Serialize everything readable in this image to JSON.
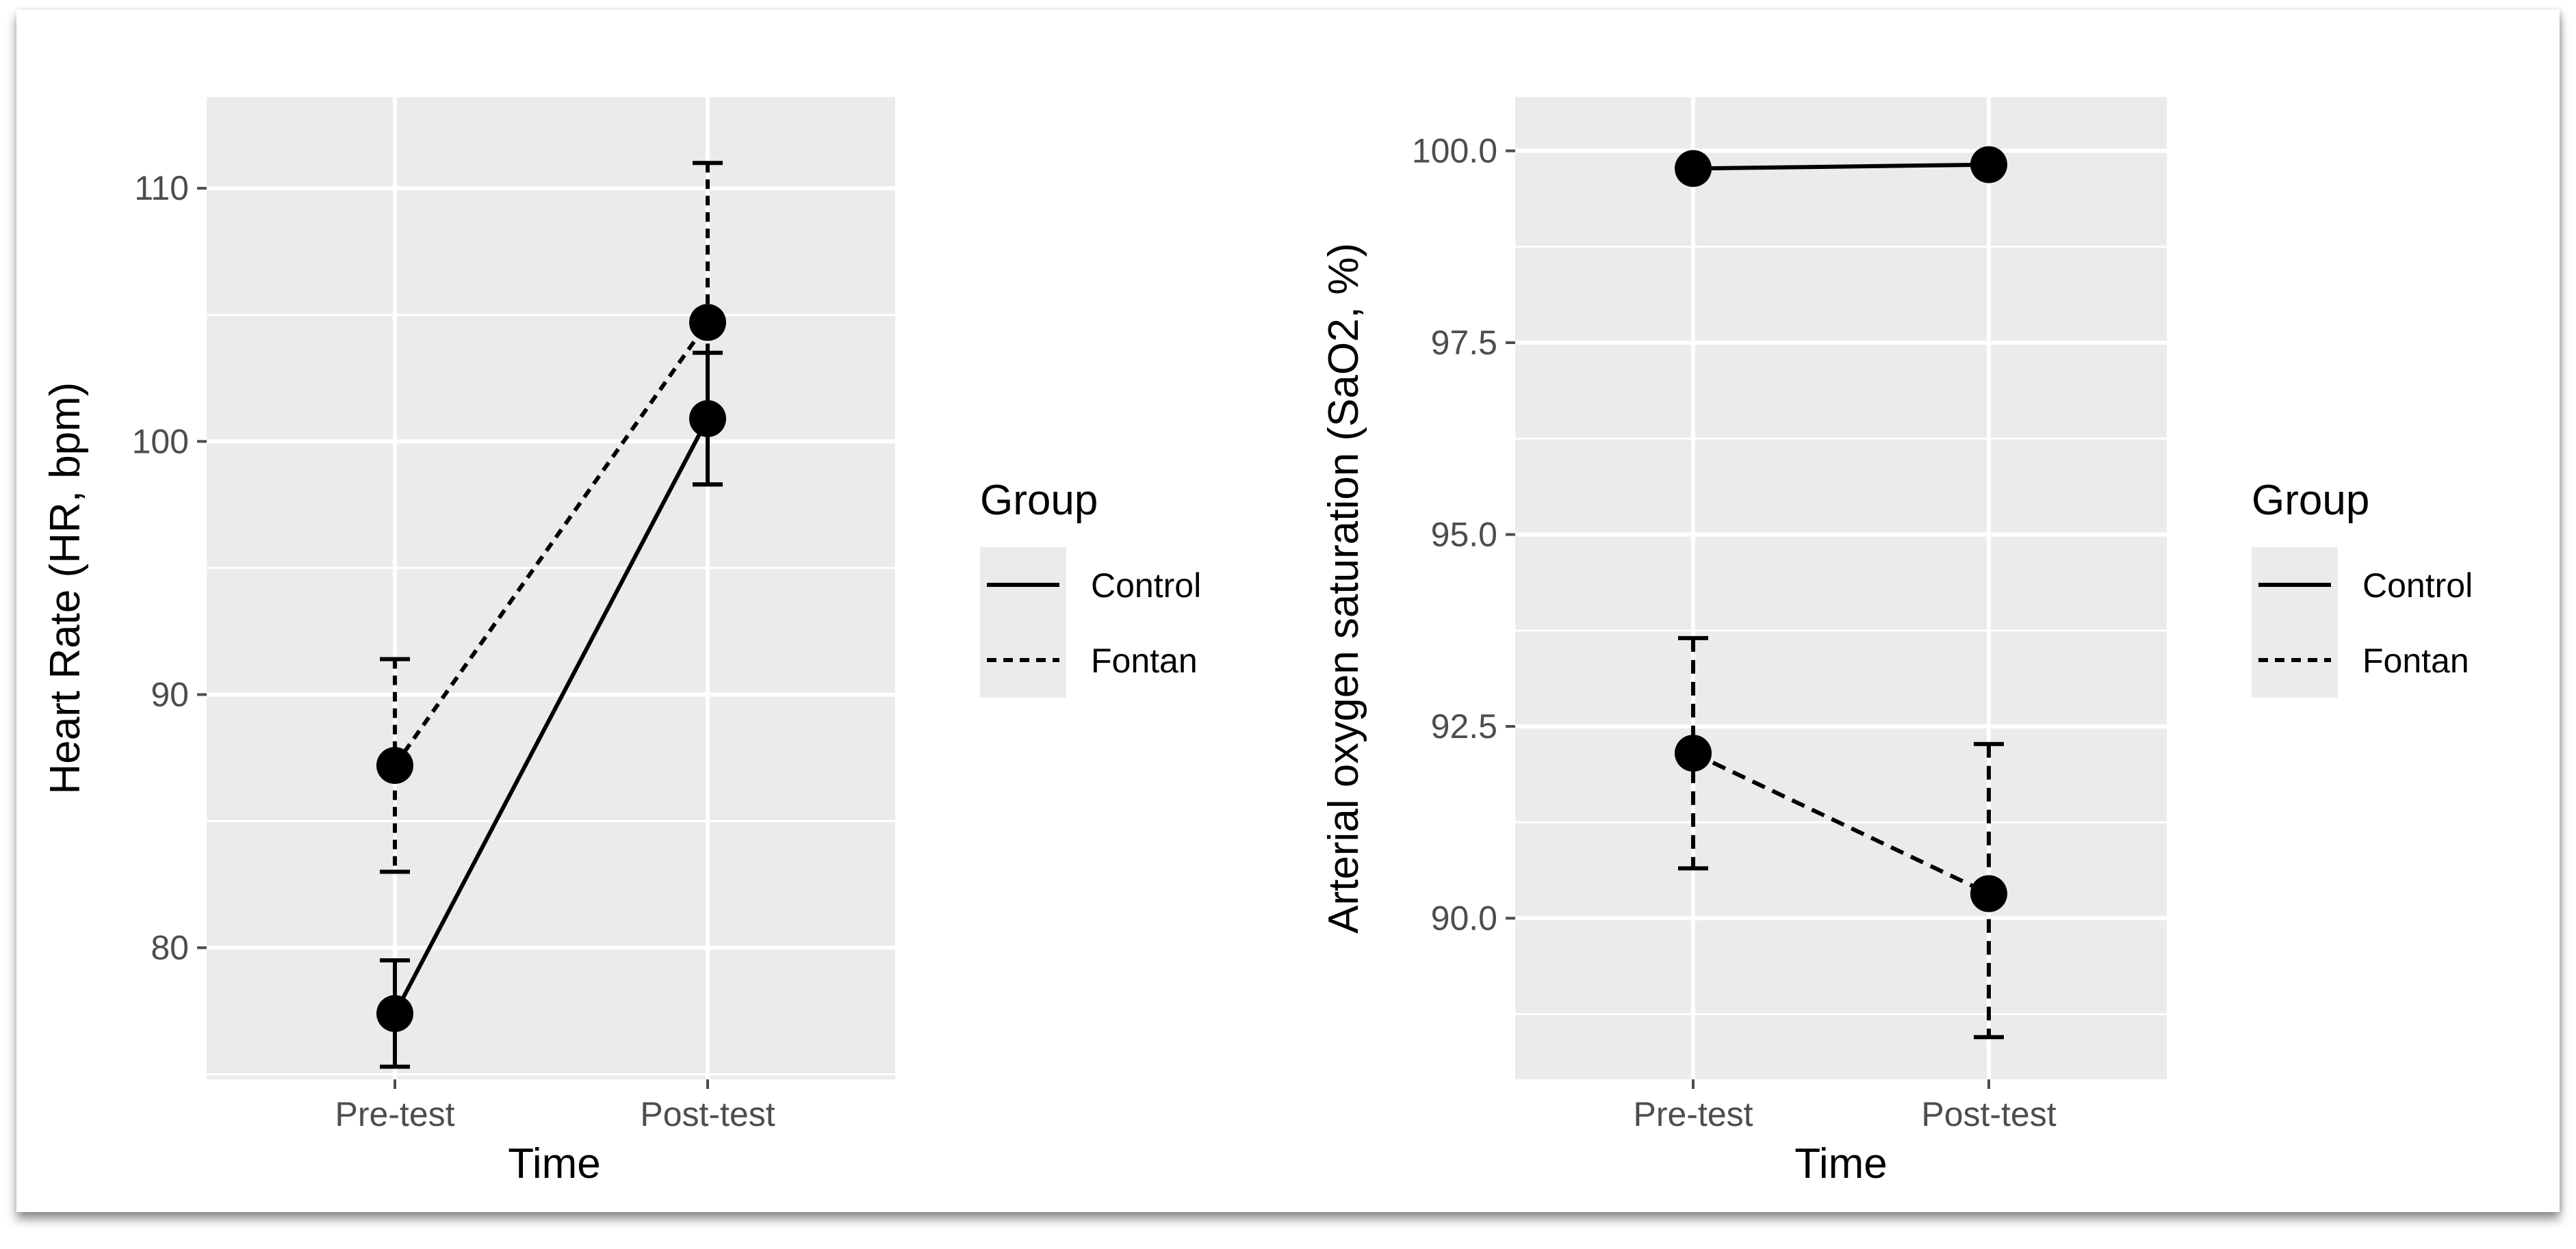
{
  "colors": {
    "panel": "#ebebeb",
    "grid": "#ffffff",
    "ink": "#000000",
    "tick": "#4d4d4d"
  },
  "legend": {
    "title": "Group",
    "items": [
      {
        "label": "Control",
        "linetype": "solid"
      },
      {
        "label": "Fontan",
        "linetype": "dashed"
      }
    ]
  },
  "chart_data": [
    {
      "type": "line",
      "title": "",
      "xlabel": "Time",
      "ylabel": "Heart Rate (HR, bpm)",
      "categories": [
        "Pre-test",
        "Post-test"
      ],
      "ylim": [
        74.8,
        113.6
      ],
      "yticks": [
        80,
        90,
        100,
        110
      ],
      "ytick_labels": [
        "80",
        "90",
        "100",
        "110"
      ],
      "grid": true,
      "series": [
        {
          "name": "Control",
          "linetype": "solid",
          "values": [
            77.4,
            100.9
          ],
          "lower": [
            75.3,
            98.3
          ],
          "upper": [
            79.5,
            103.5
          ]
        },
        {
          "name": "Fontan",
          "linetype": "dashed",
          "values": [
            87.2,
            104.7
          ],
          "lower": [
            83.0,
            98.3
          ],
          "upper": [
            91.4,
            111.0
          ]
        }
      ]
    },
    {
      "type": "line",
      "title": "",
      "xlabel": "Time",
      "ylabel": "Arterial oxygen saturation (SaO2, %)",
      "categories": [
        "Pre-test",
        "Post-test"
      ],
      "ylim": [
        87.9,
        100.7
      ],
      "yticks": [
        90.0,
        92.5,
        95.0,
        97.5,
        100.0
      ],
      "ytick_labels": [
        "90.0",
        "92.5",
        "95.0",
        "97.5",
        "100.0"
      ],
      "grid": true,
      "series": [
        {
          "name": "Control",
          "linetype": "solid",
          "values": [
            99.77,
            99.82
          ],
          "lower": [
            99.72,
            99.8
          ],
          "upper": [
            99.82,
            99.84
          ]
        },
        {
          "name": "Fontan",
          "linetype": "dashed",
          "values": [
            92.15,
            90.32
          ],
          "lower": [
            90.65,
            88.45
          ],
          "upper": [
            93.65,
            92.27
          ]
        }
      ]
    }
  ]
}
